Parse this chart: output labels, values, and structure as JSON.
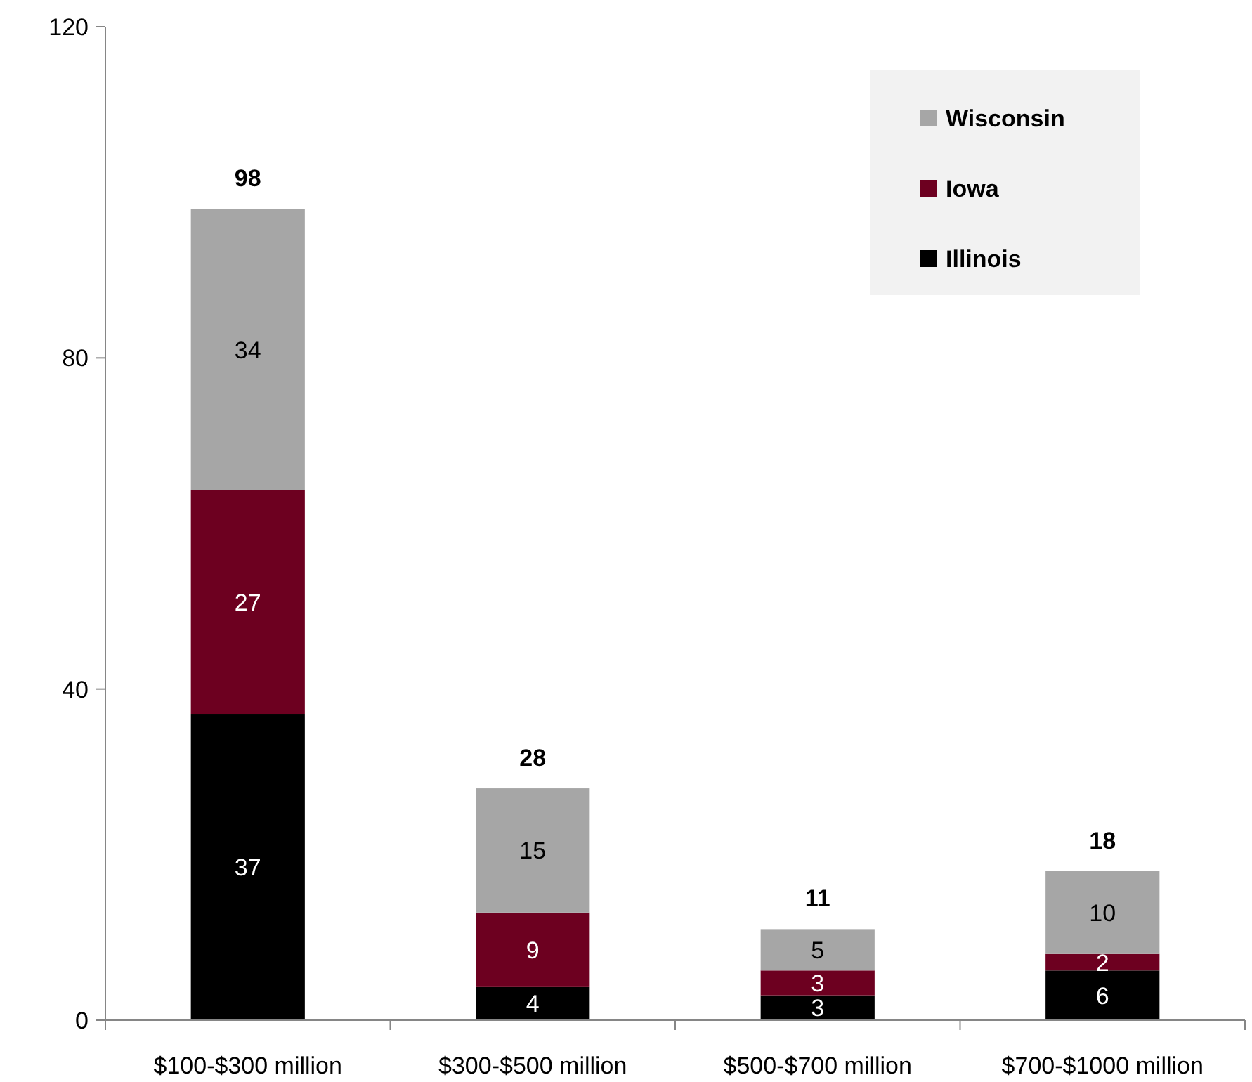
{
  "chart_data": {
    "type": "bar",
    "stacked": true,
    "categories": [
      "$100-$300 million",
      "$300-$500 million",
      "$500-$700 million",
      "$700-$1000 million"
    ],
    "series": [
      {
        "name": "Illinois",
        "color": "#000000",
        "values": [
          37,
          4,
          3,
          6
        ]
      },
      {
        "name": "Iowa",
        "color": "#6d0020",
        "values": [
          27,
          9,
          3,
          2
        ]
      },
      {
        "name": "Wisconsin",
        "color": "#a6a6a6",
        "values": [
          34,
          15,
          5,
          10
        ]
      }
    ],
    "ylim": [
      0,
      120
    ],
    "yticks": [
      0,
      40,
      80,
      120
    ],
    "grid": false,
    "legend": "top right",
    "data_labels": true,
    "totals": [
      "98",
      "28",
      "11",
      "18"
    ]
  }
}
